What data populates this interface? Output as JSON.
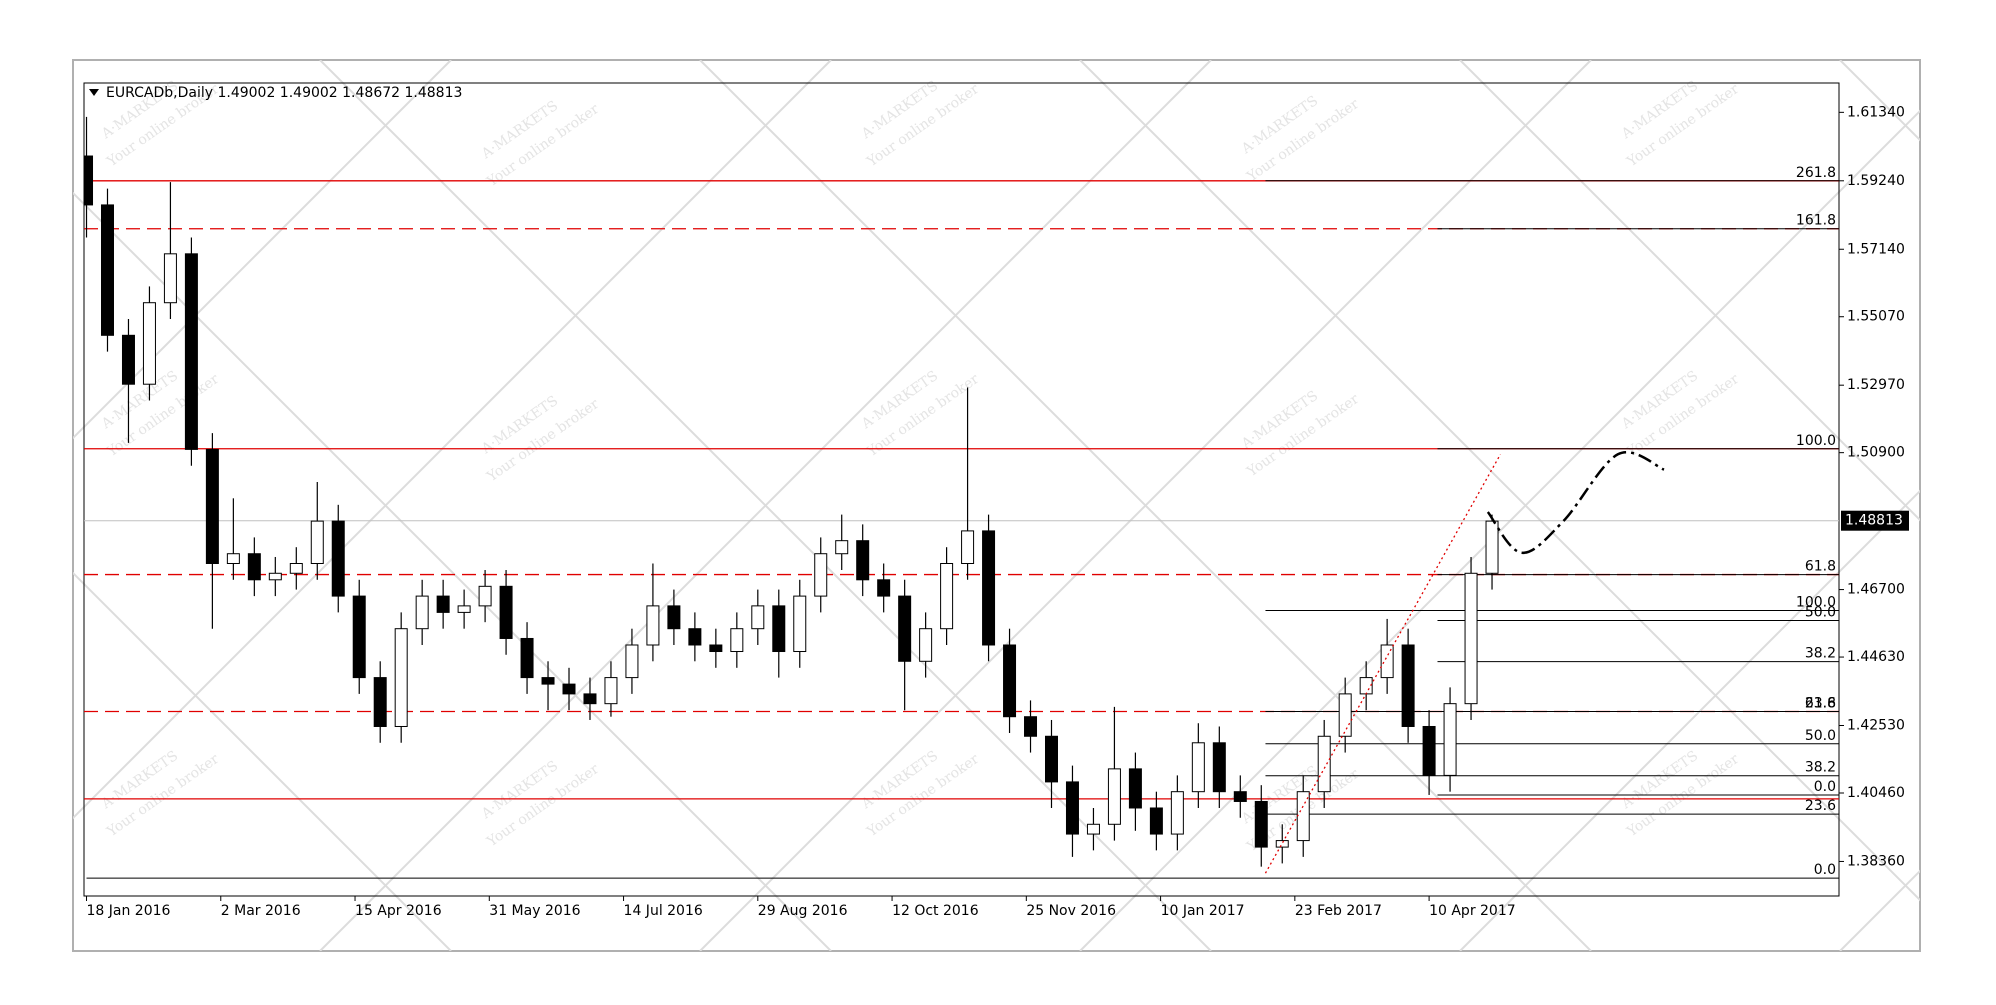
{
  "chart_data": {
    "type": "candlestick",
    "title": "EURCADb,Daily  1.49002 1.49002 1.48672 1.48813",
    "watermark": {
      "brand": "A·MARKETS",
      "tagline": "Your online broker"
    },
    "up_color": "#ffffff",
    "down_color": "#000000",
    "outline_color": "#000000",
    "x": [
      0,
      5,
      10,
      15,
      20,
      25,
      30,
      35,
      40,
      45,
      50,
      55,
      60,
      65,
      70,
      75,
      80,
      85,
      90,
      95,
      100,
      105,
      110,
      115,
      120,
      125,
      130,
      135,
      140,
      145,
      150,
      155,
      160,
      165,
      170,
      175,
      180,
      185,
      190,
      195,
      200,
      205,
      210,
      215,
      220,
      225,
      230,
      235,
      240,
      245,
      250,
      255,
      260,
      265,
      270,
      275,
      280,
      285,
      290,
      295,
      300,
      305,
      310,
      315,
      320,
      325,
      330,
      335
    ],
    "open": [
      1.6,
      1.585,
      1.545,
      1.53,
      1.555,
      1.57,
      1.51,
      1.475,
      1.478,
      1.47,
      1.472,
      1.475,
      1.488,
      1.465,
      1.44,
      1.425,
      1.455,
      1.465,
      1.46,
      1.462,
      1.468,
      1.452,
      1.44,
      1.438,
      1.435,
      1.432,
      1.44,
      1.45,
      1.462,
      1.455,
      1.45,
      1.448,
      1.455,
      1.462,
      1.448,
      1.465,
      1.478,
      1.482,
      1.47,
      1.465,
      1.445,
      1.455,
      1.475,
      1.485,
      1.45,
      1.428,
      1.422,
      1.408,
      1.392,
      1.395,
      1.412,
      1.4,
      1.392,
      1.405,
      1.42,
      1.405,
      1.402,
      1.388,
      1.39,
      1.405,
      1.422,
      1.435,
      1.44,
      1.45,
      1.425,
      1.41,
      1.432,
      1.472
    ],
    "high": [
      1.612,
      1.59,
      1.55,
      1.56,
      1.592,
      1.575,
      1.515,
      1.495,
      1.483,
      1.477,
      1.48,
      1.5,
      1.493,
      1.47,
      1.445,
      1.46,
      1.47,
      1.47,
      1.467,
      1.473,
      1.473,
      1.457,
      1.445,
      1.443,
      1.44,
      1.445,
      1.455,
      1.475,
      1.467,
      1.46,
      1.455,
      1.46,
      1.467,
      1.467,
      1.47,
      1.483,
      1.49,
      1.487,
      1.475,
      1.47,
      1.46,
      1.48,
      1.529,
      1.49,
      1.455,
      1.433,
      1.427,
      1.413,
      1.4,
      1.431,
      1.417,
      1.405,
      1.41,
      1.426,
      1.425,
      1.41,
      1.407,
      1.395,
      1.41,
      1.427,
      1.44,
      1.445,
      1.458,
      1.455,
      1.43,
      1.437,
      1.477,
      1.49
    ],
    "low": [
      1.575,
      1.54,
      1.512,
      1.525,
      1.55,
      1.505,
      1.455,
      1.47,
      1.465,
      1.465,
      1.467,
      1.47,
      1.46,
      1.435,
      1.42,
      1.42,
      1.45,
      1.455,
      1.455,
      1.457,
      1.447,
      1.435,
      1.43,
      1.43,
      1.427,
      1.428,
      1.435,
      1.445,
      1.45,
      1.445,
      1.443,
      1.443,
      1.45,
      1.44,
      1.443,
      1.46,
      1.473,
      1.465,
      1.46,
      1.43,
      1.44,
      1.45,
      1.47,
      1.445,
      1.423,
      1.417,
      1.4,
      1.385,
      1.387,
      1.39,
      1.393,
      1.387,
      1.387,
      1.4,
      1.4,
      1.397,
      1.382,
      1.383,
      1.385,
      1.4,
      1.417,
      1.43,
      1.435,
      1.42,
      1.404,
      1.405,
      1.427,
      1.467
    ],
    "close": [
      1.585,
      1.545,
      1.53,
      1.555,
      1.57,
      1.51,
      1.475,
      1.478,
      1.47,
      1.472,
      1.475,
      1.488,
      1.465,
      1.44,
      1.425,
      1.455,
      1.465,
      1.46,
      1.462,
      1.468,
      1.452,
      1.44,
      1.438,
      1.435,
      1.432,
      1.44,
      1.45,
      1.462,
      1.455,
      1.45,
      1.448,
      1.455,
      1.462,
      1.448,
      1.465,
      1.478,
      1.482,
      1.47,
      1.465,
      1.445,
      1.455,
      1.475,
      1.485,
      1.45,
      1.428,
      1.422,
      1.408,
      1.392,
      1.395,
      1.412,
      1.4,
      1.392,
      1.405,
      1.42,
      1.405,
      1.402,
      1.388,
      1.39,
      1.405,
      1.422,
      1.435,
      1.44,
      1.45,
      1.425,
      1.41,
      1.432,
      1.472,
      1.488
    ],
    "xlim": [
      -0.6,
      417.7
    ],
    "xticks": [
      {
        "value": 0,
        "label": "18 Jan 2016"
      },
      {
        "value": 32,
        "label": "2 Mar 2016"
      },
      {
        "value": 64,
        "label": "15 Apr 2016"
      },
      {
        "value": 96,
        "label": "31 May 2016"
      },
      {
        "value": 128,
        "label": "14 Jul 2016"
      },
      {
        "value": 160,
        "label": "29 Aug 2016"
      },
      {
        "value": 192,
        "label": "12 Oct 2016"
      },
      {
        "value": 224,
        "label": "25 Nov 2016"
      },
      {
        "value": 256,
        "label": "10 Jan 2017"
      },
      {
        "value": 288,
        "label": "23 Feb 2017"
      },
      {
        "value": 320,
        "label": "10 Apr 2017"
      }
    ],
    "ylim": [
      1.373,
      1.6224
    ],
    "yticks": [
      {
        "value": 1.6134,
        "label": "1.61340"
      },
      {
        "value": 1.5924,
        "label": "1.59240"
      },
      {
        "value": 1.5714,
        "label": "1.57140"
      },
      {
        "value": 1.5507,
        "label": "1.55070"
      },
      {
        "value": 1.5297,
        "label": "1.52970"
      },
      {
        "value": 1.509,
        "label": "1.50900"
      },
      {
        "value": 1.467,
        "label": "1.46700"
      },
      {
        "value": 1.4463,
        "label": "1.44630"
      },
      {
        "value": 1.4253,
        "label": "1.42530"
      },
      {
        "value": 1.4046,
        "label": "1.40460"
      },
      {
        "value": 1.3836,
        "label": "1.38360"
      }
    ],
    "last_price": 1.48813,
    "last_price_color": "#c0c0c0",
    "levels": [
      {
        "value": 1.5924,
        "style": "solid",
        "color": "#e00000"
      },
      {
        "value": 1.5777,
        "style": "dashed",
        "color": "#e00000"
      },
      {
        "value": 1.5102,
        "style": "solid",
        "color": "#e00000"
      },
      {
        "value": 1.4716,
        "style": "dashed",
        "color": "#e00000"
      },
      {
        "value": 1.4296,
        "style": "dashed",
        "color": "#e00000"
      },
      {
        "value": 1.4028,
        "style": "solid",
        "color": "#e00000"
      }
    ],
    "fib_levels": [
      {
        "label": "261.8",
        "value": 1.5924,
        "x_start": 281
      },
      {
        "label": "161.8",
        "value": 1.5777,
        "x_start": 322
      },
      {
        "label": "100.0",
        "value": 1.5102,
        "x_start": 322
      },
      {
        "label": "61.8",
        "value": 1.4716,
        "x_start": 322
      },
      {
        "label": "100.0",
        "value": 1.4606,
        "x_start": 281
      },
      {
        "label": "50.0",
        "value": 1.4575,
        "x_start": 322
      },
      {
        "label": "38.2",
        "value": 1.4449,
        "x_start": 322
      },
      {
        "label": "61.8",
        "value": 1.4296,
        "x_start": 281
      },
      {
        "label": "23.6",
        "value": 1.4296,
        "x_start": 322
      },
      {
        "label": "50.0",
        "value": 1.4197,
        "x_start": 281
      },
      {
        "label": "38.2",
        "value": 1.4099,
        "x_start": 281
      },
      {
        "label": "0.0",
        "value": 1.404,
        "x_start": 322
      },
      {
        "label": "23.6",
        "value": 1.3981,
        "x_start": 281
      },
      {
        "label": "0.0",
        "value": 1.3785,
        "x_start": 0
      }
    ],
    "trendline": {
      "color": "#e00000",
      "x": [
        281,
        337
      ],
      "y": [
        1.38,
        1.5085
      ]
    },
    "forecast": {
      "color": "#000000",
      "x": [
        334,
        342,
        352,
        365,
        376
      ],
      "y": [
        1.4908,
        1.4783,
        1.488,
        1.5085,
        1.5038
      ]
    }
  }
}
